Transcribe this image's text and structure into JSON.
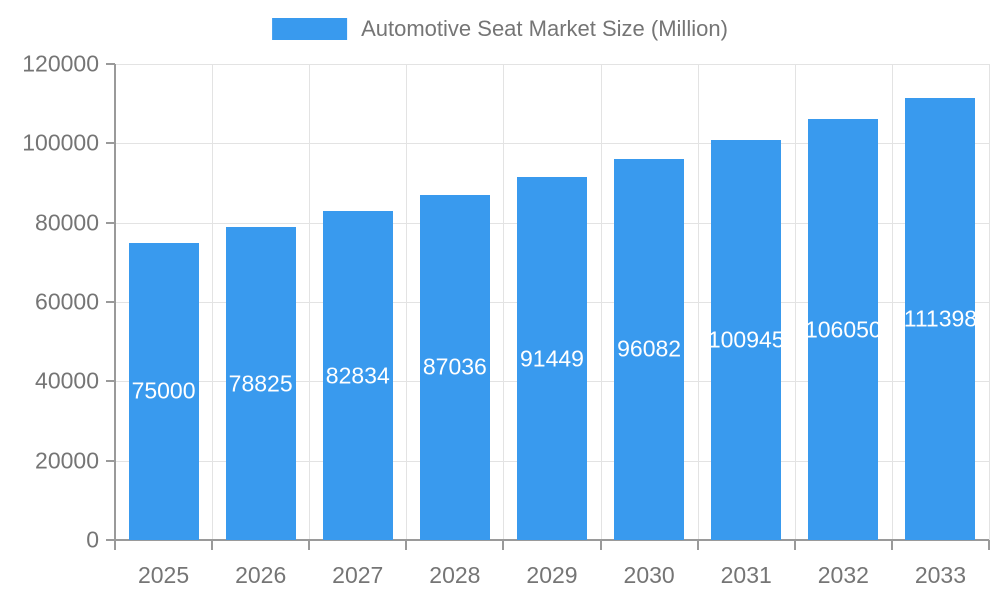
{
  "chart_data": {
    "type": "bar",
    "title": "Automotive Seat Market Size (Million)",
    "legend": [
      "Automotive Seat Market Size (Million)"
    ],
    "legend_position": "top-center",
    "categories": [
      "2025",
      "2026",
      "2027",
      "2028",
      "2029",
      "2030",
      "2031",
      "2032",
      "2033"
    ],
    "series": [
      {
        "name": "Automotive Seat Market Size (Million)",
        "values": [
          75000,
          78825,
          82834,
          87036,
          91449,
          96082,
          100945,
          106050,
          111398
        ]
      }
    ],
    "value_labels_shown": true,
    "xlabel": "",
    "ylabel": "",
    "ylim": [
      0,
      120000
    ],
    "yticks": [
      0,
      20000,
      40000,
      60000,
      80000,
      100000,
      120000
    ],
    "grid": true,
    "colors": {
      "bar": "#399aee",
      "value_label": "#ffffff",
      "axis": "#9a9a9a",
      "gridline": "#e3e3e3",
      "tick_text": "#757575",
      "legend_text": "#757575",
      "background": "#ffffff"
    }
  }
}
